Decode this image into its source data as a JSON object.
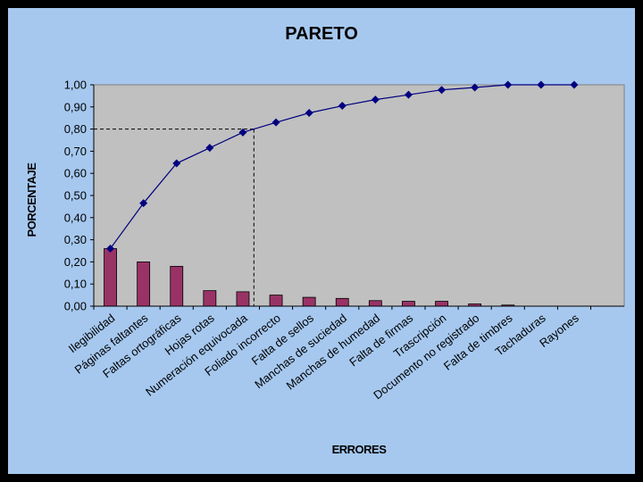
{
  "chart_data": {
    "type": "bar",
    "title": "PARETO",
    "xlabel": "ERRORES",
    "ylabel": "PORCENTAJE",
    "ylim": [
      0,
      1
    ],
    "yticks": [
      "0,00",
      "0,10",
      "0,20",
      "0,30",
      "0,40",
      "0,50",
      "0,60",
      "0,70",
      "0,80",
      "0,90",
      "1,00"
    ],
    "categories": [
      "Ilegibilidad",
      "Páginas faltantes",
      "Faltas ortográficas",
      "Hojas rotas",
      "Numeración equivocada",
      "Foliado incorrecto",
      "Falta de sellos",
      "Manchas de suciedad",
      "Manchas de humedad",
      "Falta de firmas",
      "Trascripción",
      "Documento no registrado",
      "Falta de timbres",
      "Tachaduras",
      "Rayones"
    ],
    "series": [
      {
        "type": "bar",
        "color": "#993366",
        "values": [
          0.26,
          0.2,
          0.18,
          0.07,
          0.065,
          0.05,
          0.04,
          0.035,
          0.025,
          0.022,
          0.022,
          0.01,
          0.005,
          0.0,
          0.0
        ]
      },
      {
        "type": "line",
        "color": "#000080",
        "values": [
          0.26,
          0.465,
          0.645,
          0.715,
          0.785,
          0.83,
          0.873,
          0.905,
          0.933,
          0.955,
          0.977,
          0.988,
          1.0,
          1.0,
          1.0
        ]
      }
    ],
    "reference_line": {
      "value": 0.8,
      "style": "dashed"
    },
    "plot_background": "#C0C0C0",
    "page_background": "#A6C8EF",
    "grid": false,
    "legend": "none"
  }
}
